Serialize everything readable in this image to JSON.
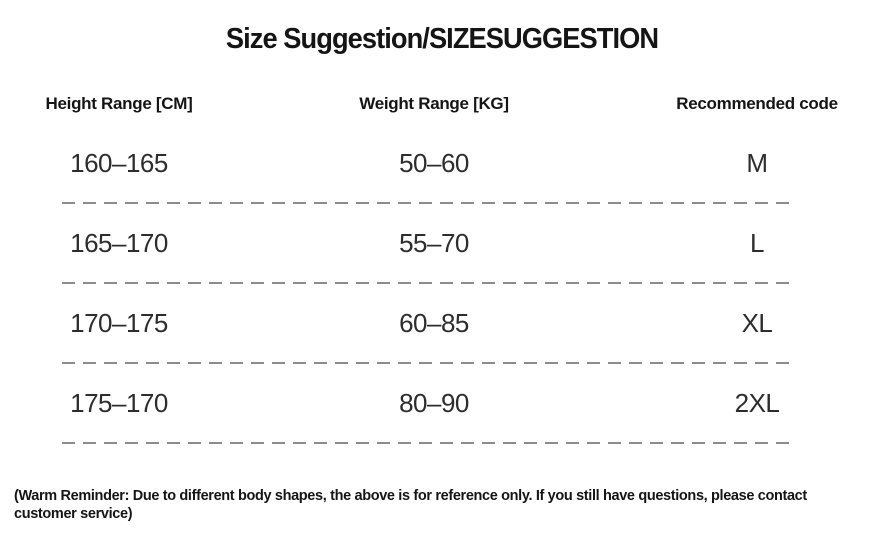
{
  "title": "Size Suggestion/SIZESUGGESTION",
  "table": {
    "columns": [
      "Height Range [CM]",
      "Weight Range [KG]",
      "Recommended code"
    ],
    "rows": [
      {
        "height": "160–165",
        "weight": "50–60",
        "code": "M"
      },
      {
        "height": "165–170",
        "weight": "55–70",
        "code": "L"
      },
      {
        "height": "170–175",
        "weight": "60–85",
        "code": "XL"
      },
      {
        "height": "175–170",
        "weight": "80–90",
        "code": "2XL"
      }
    ]
  },
  "footer": "(Warm Reminder: Due to different body shapes, the above is for reference only. If you still have questions, please contact customer service)",
  "colors": {
    "heading_text": "#151515",
    "data_text": "#2d2d2d",
    "divider": "#8c8c8c",
    "background": "#ffffff"
  }
}
